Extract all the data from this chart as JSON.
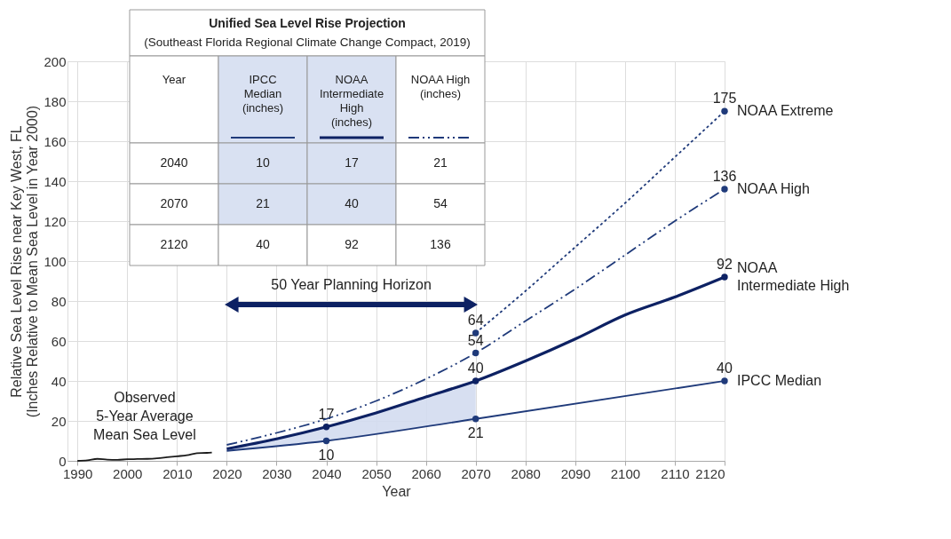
{
  "chart_data": {
    "type": "line",
    "title": "Unified Sea Level Rise Projection",
    "subtitle": "(Southeast Florida Regional Climate Change Compact, 2019)",
    "xlabel": "Year",
    "ylabel": "Relative Sea Level Rise near Key West, FL (Inches Relative to Mean Sea Level in Year 2000)",
    "xlim": [
      1988,
      2120
    ],
    "xticks": [
      1990,
      2000,
      2010,
      2020,
      2030,
      2040,
      2050,
      2060,
      2070,
      2080,
      2090,
      2100,
      2110,
      2120
    ],
    "ylim": [
      0,
      200
    ],
    "yticks": [
      0,
      20,
      40,
      60,
      80,
      100,
      120,
      140,
      160,
      180,
      200
    ],
    "grid": true,
    "legend": false,
    "annotations": [
      "Year",
      "IPCC Median (inches)",
      "NOAA Intermediate High (inches)",
      "NOAA High (inches)",
      "2040",
      "10",
      "17",
      "21",
      "2070",
      "21",
      "40",
      "54",
      "2120",
      "40",
      "92",
      "136",
      {
        "text": "50 Year Planning Horizon"
      }
    ],
    "series": [
      {
        "name": "Observed 5-Year Average Mean Sea Level",
        "color": "#1a1a1a",
        "line_style": "solid",
        "x": [
          1990,
          1992,
          1994,
          1996,
          1998,
          2000,
          2002,
          2004,
          2006,
          2008,
          2010,
          2012,
          2014,
          2016,
          2017
        ],
        "values": [
          0,
          0.3,
          1,
          0.6,
          0.5,
          0.8,
          0.9,
          1,
          1.3,
          1.8,
          2.3,
          2.8,
          3.8,
          4,
          4.2
        ]
      },
      {
        "name": "IPCC Median",
        "color": "#1f3a7a",
        "line_style": "solid",
        "x": [
          2020,
          2040,
          2070,
          2120
        ],
        "values": [
          5,
          10,
          21,
          40
        ],
        "value_labels": [
          null,
          "10",
          "21",
          "40"
        ]
      },
      {
        "name": "NOAA Intermediate High",
        "color": "#0d2163",
        "line_style": "solid",
        "x": [
          2020,
          2030,
          2040,
          2050,
          2060,
          2070,
          2080,
          2090,
          2100,
          2110,
          2120
        ],
        "values": [
          6,
          11,
          17,
          24,
          32,
          40,
          50,
          61,
          73,
          82,
          92
        ],
        "value_labels": [
          null,
          null,
          "17",
          null,
          null,
          "40",
          null,
          null,
          null,
          null,
          "92"
        ],
        "lower": [
          5,
          7.5,
          10,
          13.7,
          17.3,
          21,
          null,
          null,
          null,
          null,
          null
        ],
        "upper": [
          6,
          11,
          17,
          24,
          32,
          40,
          null,
          null,
          null,
          null,
          null
        ]
      },
      {
        "name": "NOAA High",
        "color": "#1f3a7a",
        "line_style": "dashdot",
        "x": [
          2020,
          2030,
          2040,
          2050,
          2060,
          2070,
          2080,
          2090,
          2100,
          2110,
          2120
        ],
        "values": [
          8,
          14,
          21,
          30,
          41,
          54,
          70,
          86,
          103,
          120,
          136
        ],
        "value_labels": [
          null,
          null,
          null,
          null,
          null,
          "54",
          null,
          null,
          null,
          null,
          "136"
        ]
      },
      {
        "name": "NOAA Extreme",
        "color": "#1f3a7a",
        "line_style": "dotted",
        "x": [
          2070,
          2080,
          2090,
          2100,
          2110,
          2120
        ],
        "values": [
          64,
          85,
          107,
          129,
          152,
          175
        ],
        "value_labels": [
          "64",
          null,
          null,
          null,
          null,
          "175"
        ]
      }
    ]
  }
}
